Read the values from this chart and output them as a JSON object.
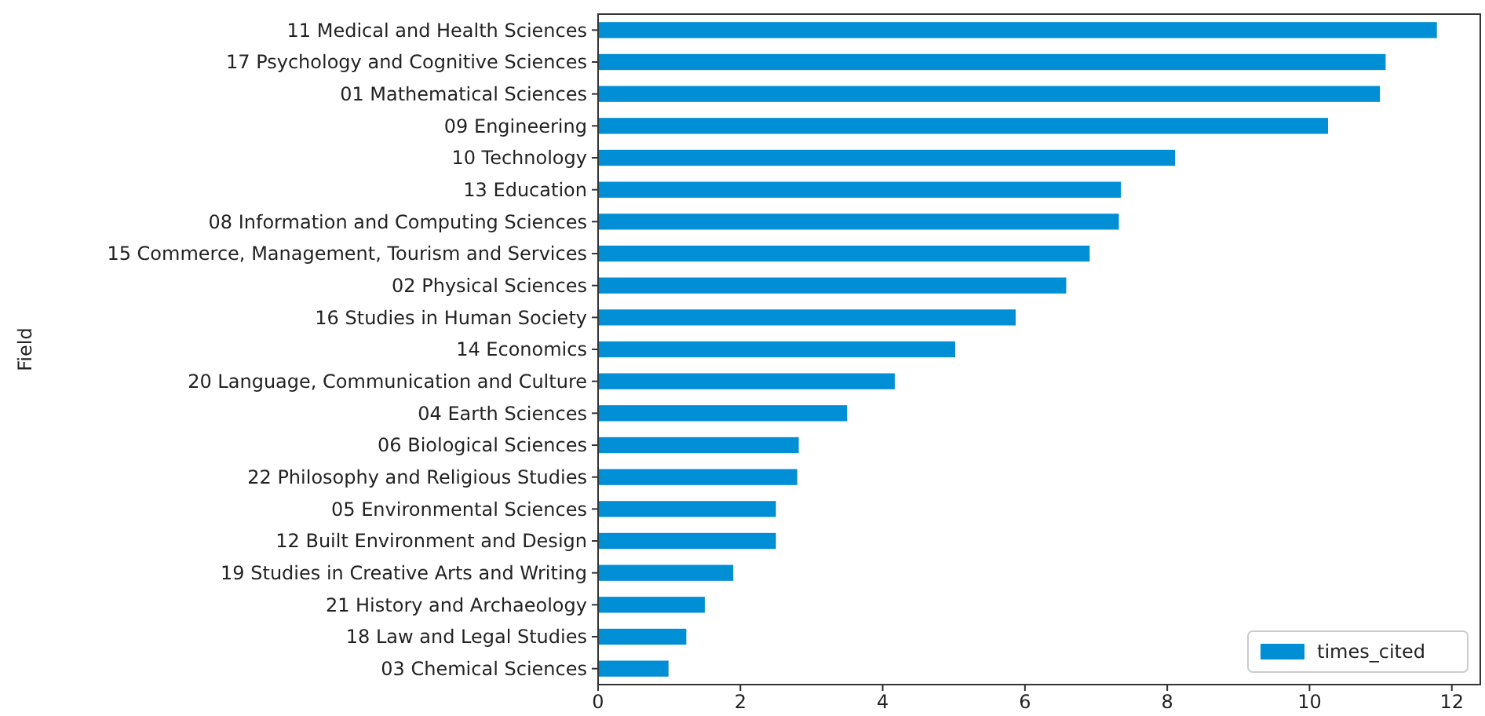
{
  "chart_data": {
    "type": "bar",
    "orientation": "horizontal",
    "ylabel": "Field",
    "categories": [
      "11 Medical and Health Sciences",
      "17 Psychology and Cognitive Sciences",
      "01 Mathematical Sciences",
      "09 Engineering",
      "10 Technology",
      "13 Education",
      "08 Information and Computing Sciences",
      "15 Commerce, Management, Tourism and Services",
      "02 Physical Sciences",
      "16 Studies in Human Society",
      "14 Economics",
      "20 Language, Communication and Culture",
      "04 Earth Sciences",
      "06 Biological Sciences",
      "22 Philosophy and Religious Studies",
      "05 Environmental Sciences",
      "12 Built Environment and Design",
      "19 Studies in Creative Arts and Writing",
      "21 History and Archaeology",
      "18 Law and Legal Studies",
      "03 Chemical Sciences"
    ],
    "series": [
      {
        "name": "times_cited",
        "color": "#008fd5",
        "values": [
          11.79,
          11.07,
          10.99,
          10.26,
          8.11,
          7.35,
          7.32,
          6.91,
          6.58,
          5.87,
          5.02,
          4.17,
          3.5,
          2.82,
          2.8,
          2.5,
          2.5,
          1.9,
          1.5,
          1.24,
          0.99
        ]
      }
    ],
    "xlim": [
      0,
      12.4
    ],
    "xticks": [
      0,
      2,
      4,
      6,
      8,
      10,
      12
    ],
    "grid": false,
    "legend": "bottom right"
  }
}
